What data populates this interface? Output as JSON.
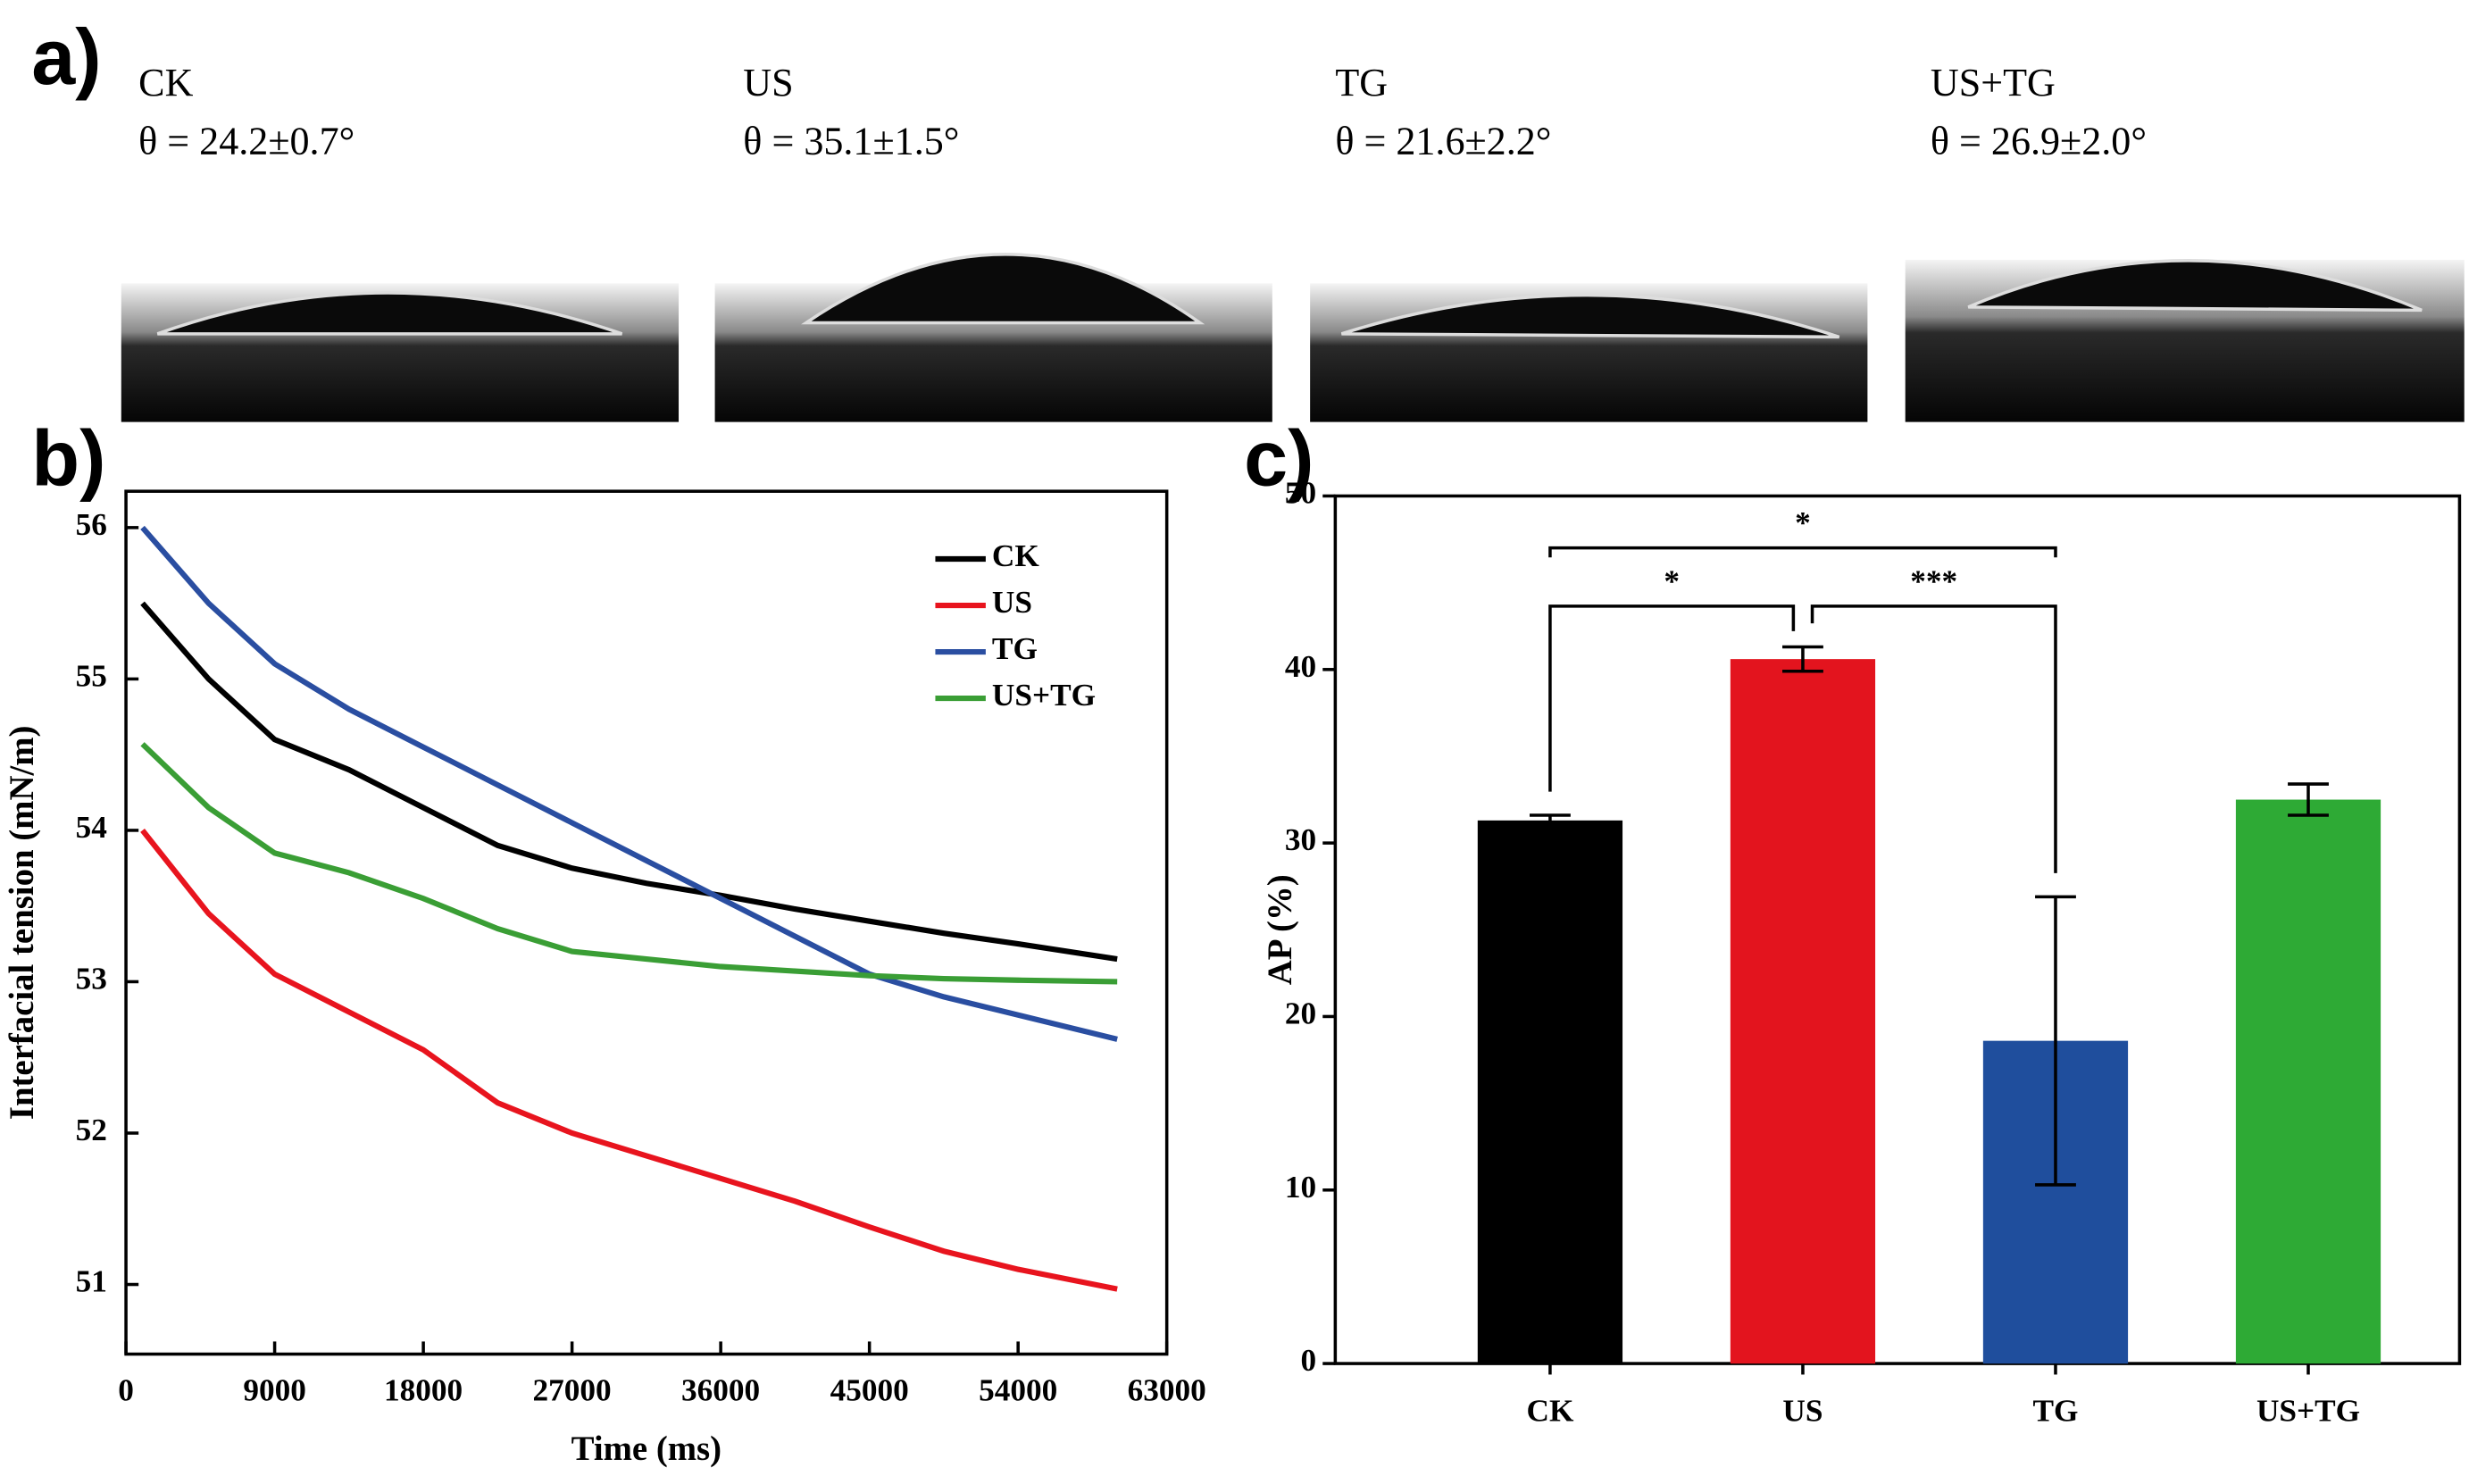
{
  "panel_a": {
    "label": "a)",
    "samples": [
      {
        "name": "CK",
        "angle": "θ = 24.2±0.7°"
      },
      {
        "name": "US",
        "angle": "θ = 35.1±1.5°"
      },
      {
        "name": "TG",
        "angle": "θ = 21.6±2.2°"
      },
      {
        "name": "US+TG",
        "angle": "θ = 26.9±2.0°"
      }
    ]
  },
  "chart_data": [
    {
      "type": "line",
      "label": "b)",
      "x_label": "Time (ms)",
      "y_label": "Interfacial tension (mN/m)",
      "x": [
        1000,
        5000,
        9000,
        13500,
        18000,
        22500,
        27000,
        31500,
        36000,
        40500,
        45000,
        49500,
        54000,
        60000
      ],
      "series": [
        {
          "name": "CK",
          "color": "#000000",
          "values": [
            55.5,
            55.0,
            54.6,
            54.4,
            54.15,
            53.9,
            53.75,
            53.65,
            53.57,
            53.48,
            53.4,
            53.32,
            53.25,
            53.15
          ]
        },
        {
          "name": "US",
          "color": "#e8141e",
          "values": [
            54.0,
            53.45,
            53.05,
            52.8,
            52.55,
            52.2,
            52.0,
            51.85,
            51.7,
            51.55,
            51.38,
            51.22,
            51.1,
            50.97
          ]
        },
        {
          "name": "TG",
          "color": "#2a4ea1",
          "values": [
            56.0,
            55.5,
            55.1,
            54.8,
            54.55,
            54.3,
            54.05,
            53.8,
            53.55,
            53.3,
            53.05,
            52.9,
            52.78,
            52.62
          ]
        },
        {
          "name": "US+TG",
          "color": "#3a9e35",
          "values": [
            54.57,
            54.15,
            53.85,
            53.72,
            53.55,
            53.35,
            53.2,
            53.15,
            53.1,
            53.07,
            53.04,
            53.02,
            53.01,
            53.0
          ]
        }
      ],
      "xlim": [
        0,
        63000
      ],
      "xticks": [
        0,
        9000,
        18000,
        27000,
        36000,
        45000,
        54000,
        63000
      ],
      "ylim": [
        50.54,
        56.24
      ],
      "yticks": [
        51,
        52,
        53,
        54,
        55,
        56
      ],
      "legend": "upper right"
    },
    {
      "type": "bar",
      "label": "c)",
      "y_label": "AP (%)",
      "categories": [
        "CK",
        "US",
        "TG",
        "US+TG"
      ],
      "values": [
        31.3,
        40.6,
        18.6,
        32.5
      ],
      "errors": [
        0.3,
        0.7,
        8.3,
        0.9
      ],
      "colors": [
        "#000000",
        "#e3141e",
        "#1f4e9d",
        "#2eaa35"
      ],
      "ylim": [
        0,
        50
      ],
      "yticks": [
        0,
        10,
        20,
        30,
        40,
        50
      ],
      "annotations": [
        {
          "text": "*",
          "from": 0,
          "to": 2
        },
        {
          "text": "*",
          "from": 0,
          "to": 1
        },
        {
          "text": "***",
          "from": 1,
          "to": 2
        }
      ]
    }
  ]
}
